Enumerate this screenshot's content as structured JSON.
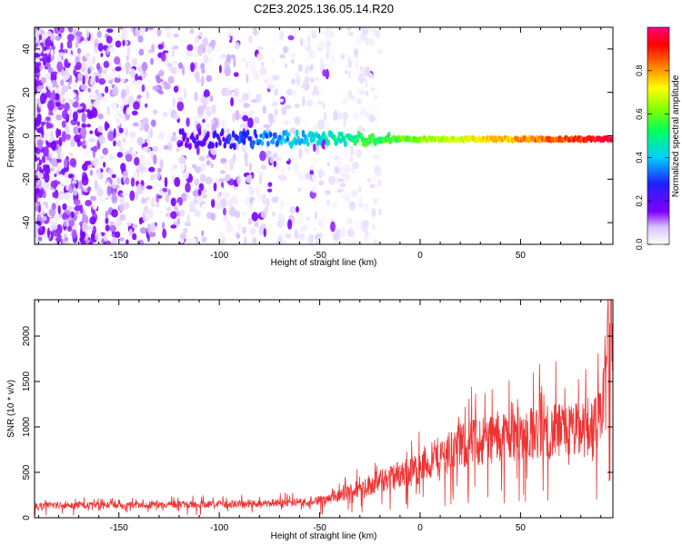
{
  "figure": {
    "title": "C2E3.2025.136.05.14.R20"
  },
  "chart_data": [
    {
      "type": "heatmap",
      "title": "C2E3.2025.136.05.14.R20",
      "xlabel": "Height of straight line (km)",
      "ylabel": "Frequency (Hz)",
      "xlim": [
        -192,
        96
      ],
      "ylim": [
        -50,
        50
      ],
      "x_ticks": [
        -150,
        -100,
        -50,
        0,
        50
      ],
      "y_ticks": [
        -40,
        -20,
        0,
        20,
        40
      ],
      "colorbar": {
        "label": "Normalized spectral amplitude",
        "range": [
          0.0,
          1.0
        ],
        "ticks": [
          0.0,
          0.2,
          0.4,
          0.6,
          0.8
        ],
        "colormap": "rainbow (white–violet–blue–cyan–green–yellow–red–magenta)"
      },
      "features": [
        {
          "description_of_band": "noise",
          "x_range": [
            -192,
            -20
          ],
          "frequency_range": [
            -50,
            50
          ],
          "amplitude": [
            0.0,
            0.15
          ]
        },
        {
          "description_of_band": "signal",
          "x_range": [
            -120,
            96
          ],
          "frequency": -1.5,
          "amplitude_start": 0.15,
          "amplitude_end": 0.95
        }
      ],
      "colors": {
        "low": "#8000ff",
        "high": "#ff0000"
      }
    },
    {
      "type": "line",
      "xlabel": "Height of straight line (km)",
      "ylabel": "SNR (10 * v/v)",
      "xlim": [
        -192,
        96
      ],
      "ylim": [
        0,
        2400
      ],
      "x_ticks": [
        -150,
        -100,
        -50,
        0,
        50
      ],
      "y_ticks": [
        0,
        500,
        1000,
        1500,
        2000
      ],
      "color": "#ee3333",
      "x": [
        -192,
        -175,
        -150,
        -125,
        -100,
        -75,
        -50,
        -40,
        -30,
        -20,
        -10,
        0,
        10,
        20,
        30,
        40,
        50,
        60,
        70,
        80,
        85,
        90,
        93,
        96
      ],
      "y": [
        130,
        135,
        140,
        145,
        150,
        160,
        190,
        240,
        330,
        400,
        480,
        550,
        680,
        780,
        850,
        900,
        920,
        940,
        950,
        960,
        980,
        1050,
        1800,
        2300
      ]
    }
  ]
}
